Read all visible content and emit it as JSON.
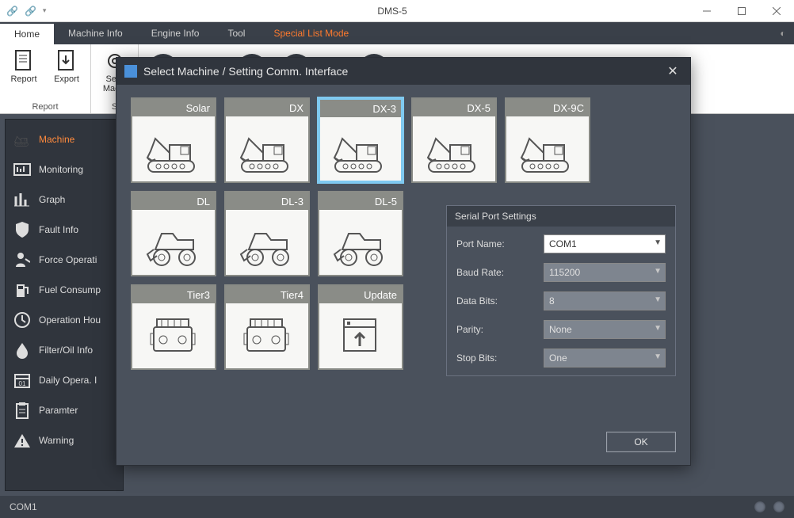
{
  "window": {
    "title": "DMS-5"
  },
  "ribbon": {
    "tabs": [
      {
        "label": "Home",
        "active": true
      },
      {
        "label": "Machine Info"
      },
      {
        "label": "Engine Info"
      },
      {
        "label": "Tool"
      },
      {
        "label": "Special List Mode",
        "special": true
      }
    ],
    "group1": {
      "label": "Report",
      "items": [
        {
          "label": "Report"
        },
        {
          "label": "Export"
        }
      ]
    },
    "group2": {
      "label": "S",
      "items": [
        {
          "label": "Sele"
        },
        {
          "label": "Machi"
        }
      ]
    }
  },
  "sidebar": {
    "items": [
      {
        "label": "Machine",
        "icon": "excavator",
        "active": true
      },
      {
        "label": "Monitoring",
        "icon": "monitor"
      },
      {
        "label": "Graph",
        "icon": "bars"
      },
      {
        "label": "Fault Info",
        "icon": "shield"
      },
      {
        "label": "Force Operati",
        "icon": "person"
      },
      {
        "label": "Fuel Consump",
        "icon": "fuel"
      },
      {
        "label": "Operation Hou",
        "icon": "clock"
      },
      {
        "label": "Filter/Oil Info",
        "icon": "drop"
      },
      {
        "label": "Daily Opera. I",
        "icon": "calendar"
      },
      {
        "label": "Paramter",
        "icon": "clipboard"
      },
      {
        "label": "Warning",
        "icon": "warning"
      }
    ]
  },
  "modal": {
    "title": "Select Machine / Setting Comm. Interface",
    "machines_row1": [
      {
        "label": "Solar",
        "type": "excavator"
      },
      {
        "label": "DX",
        "type": "excavator"
      },
      {
        "label": "DX-3",
        "type": "excavator",
        "selected": true
      },
      {
        "label": "DX-5",
        "type": "excavator"
      },
      {
        "label": "DX-9C",
        "type": "excavator"
      }
    ],
    "machines_row2": [
      {
        "label": "DL",
        "type": "loader"
      },
      {
        "label": "DL-3",
        "type": "loader"
      },
      {
        "label": "DL-5",
        "type": "loader"
      }
    ],
    "machines_row3": [
      {
        "label": "Tier3",
        "type": "engine"
      },
      {
        "label": "Tier4",
        "type": "engine"
      },
      {
        "label": "Update",
        "type": "update"
      }
    ],
    "serial": {
      "title": "Serial Port Settings",
      "port_name_label": "Port Name:",
      "port_name_value": "COM1",
      "baud_rate_label": "Baud Rate:",
      "baud_rate_value": "115200",
      "data_bits_label": "Data Bits:",
      "data_bits_value": "8",
      "parity_label": "Parity:",
      "parity_value": "None",
      "stop_bits_label": "Stop Bits:",
      "stop_bits_value": "One"
    },
    "ok_label": "OK"
  },
  "status": {
    "port": "COM1"
  },
  "colors": {
    "accent": "#ff8a3d",
    "dark1": "#3a4049",
    "dark2": "#4a515c",
    "dark3": "#30353d",
    "selection": "#7fc9f0"
  }
}
